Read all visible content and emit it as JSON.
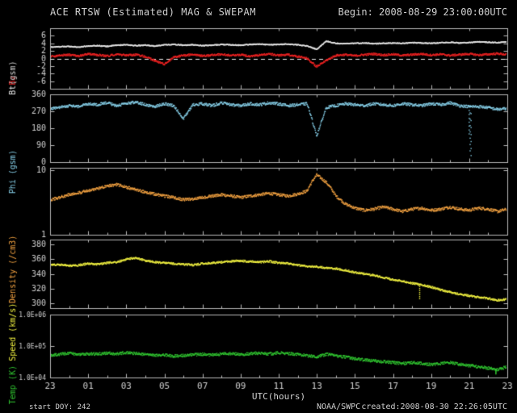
{
  "header": {
    "title": "ACE RTSW (Estimated) MAG & SWEPAM",
    "begin_label": "Begin: 2008-08-29 23:00:00UTC"
  },
  "footer": {
    "start_doy": "start DOY: 242",
    "agency": "NOAA/SWPC",
    "created": "created:2008-08-30 22:26:05UTC"
  },
  "colors": {
    "background": "#000000",
    "frame": "#b8b8b8",
    "tick_text": "#d0d0d0",
    "zero_line": "#e8e8e8",
    "bt": "#e8e8e8",
    "bz": "#ee2222",
    "phi": "#86cfe8",
    "density": "#f0a040",
    "speed": "#f0f040",
    "temp": "#30c430"
  },
  "chart_data": {
    "type": "scatter",
    "title": "ACE RTSW (Estimated) MAG & SWEPAM",
    "begin_utc": "2008-08-29 23:00:00UTC",
    "xlabel": "UTC(hours)",
    "xlim_hours_elapsed": [
      0,
      24
    ],
    "x_hours_elapsed": [
      0,
      0.5,
      1,
      1.5,
      2,
      2.5,
      3,
      3.5,
      4,
      4.5,
      5,
      5.5,
      6,
      6.5,
      7,
      7.5,
      8,
      8.5,
      9,
      9.5,
      10,
      10.5,
      11,
      11.5,
      12,
      12.5,
      13,
      13.5,
      14,
      14.5,
      15,
      15.5,
      16,
      16.5,
      17,
      17.5,
      18,
      18.5,
      19,
      19.5,
      20,
      20.5,
      21,
      21.5,
      22,
      22.5,
      23,
      23.5,
      24
    ],
    "x_ticks": {
      "positions_elapsed": [
        0,
        2,
        4,
        6,
        8,
        10,
        12,
        14,
        16,
        18,
        20,
        22,
        24
      ],
      "labels": [
        "23",
        "01",
        "03",
        "05",
        "07",
        "09",
        "11",
        "13",
        "15",
        "17",
        "19",
        "21",
        "23"
      ]
    },
    "panels": [
      {
        "id": "mag",
        "ylabel": "Bt Bz (gsm)",
        "ylabel_parts": [
          {
            "text": "Bt",
            "color": "bt"
          },
          {
            "text": " Bz",
            "color": "bz"
          },
          {
            "text": " (gsm)",
            "color": "tick_text"
          }
        ],
        "scale": "linear",
        "ylim": [
          -8,
          8
        ],
        "yticks": [
          6,
          4,
          2,
          0,
          -2,
          -4,
          -6
        ],
        "zero_line_dashed": true,
        "series": [
          {
            "name": "Bt",
            "color": "bt",
            "values": [
              3.0,
              3.1,
              3.2,
              3.0,
              3.3,
              3.4,
              3.2,
              3.5,
              3.6,
              3.4,
              3.5,
              3.3,
              3.6,
              3.7,
              3.5,
              3.6,
              3.4,
              3.5,
              3.7,
              3.6,
              3.5,
              3.7,
              3.8,
              3.6,
              3.7,
              3.8,
              3.6,
              3.3,
              2.4,
              4.6,
              4.0,
              3.9,
              4.0,
              4.1,
              3.9,
              4.0,
              4.1,
              4.0,
              4.2,
              4.1,
              4.0,
              4.2,
              4.3,
              4.1,
              4.2,
              4.4,
              4.3,
              4.2,
              4.4
            ]
          },
          {
            "name": "Bz",
            "color": "bz",
            "values": [
              0.5,
              0.8,
              1.0,
              0.6,
              1.2,
              0.9,
              0.7,
              1.1,
              0.8,
              1.0,
              0.5,
              -0.6,
              -1.5,
              0.3,
              0.8,
              1.0,
              0.7,
              0.9,
              1.1,
              0.8,
              1.0,
              0.6,
              0.9,
              1.2,
              0.8,
              1.0,
              0.5,
              0.0,
              -2.2,
              -0.5,
              0.8,
              1.0,
              0.7,
              1.0,
              1.2,
              0.9,
              1.1,
              0.8,
              1.0,
              1.2,
              0.9,
              1.1,
              0.8,
              1.0,
              1.2,
              0.9,
              1.1,
              1.3,
              1.0
            ]
          }
        ]
      },
      {
        "id": "phi",
        "ylabel": "Phi (gsm)",
        "ylabel_parts": [
          {
            "text": "Phi (gsm)",
            "color": "phi"
          }
        ],
        "scale": "linear",
        "ylim": [
          0,
          360
        ],
        "yticks": [
          360,
          270,
          180,
          90,
          0
        ],
        "series": [
          {
            "name": "Phi",
            "color": "phi",
            "values": [
              285,
              290,
              300,
              295,
              310,
              305,
              315,
              300,
              310,
              320,
              305,
              295,
              310,
              300,
              230,
              305,
              310,
              300,
              315,
              305,
              300,
              310,
              305,
              315,
              310,
              300,
              305,
              310,
              140,
              290,
              300,
              310,
              305,
              300,
              310,
              305,
              300,
              310,
              305,
              300,
              310,
              305,
              315,
              300,
              295,
              295,
              290,
              280,
              285
            ],
            "outliers": [
              [
                22.0,
                150
              ],
              [
                22.05,
                60
              ],
              [
                22.1,
                35
              ]
            ]
          }
        ]
      },
      {
        "id": "density",
        "ylabel": "Density (/cm3)",
        "ylabel_parts": [
          {
            "text": "Density (/cm3)",
            "color": "density"
          }
        ],
        "scale": "log",
        "ylim": [
          1,
          11
        ],
        "yticks": [
          10,
          1
        ],
        "ytick_labels": [
          "10",
          "1"
        ],
        "series": [
          {
            "name": "Density",
            "color": "density",
            "values": [
              3.5,
              3.8,
              4.2,
              4.5,
              4.8,
              5.2,
              5.8,
              6.0,
              5.5,
              5.0,
              4.6,
              4.3,
              4.0,
              3.8,
              3.5,
              3.6,
              3.8,
              4.0,
              4.2,
              4.0,
              3.8,
              4.0,
              4.2,
              4.4,
              4.2,
              4.0,
              4.3,
              4.8,
              8.5,
              6.5,
              4.0,
              3.0,
              2.6,
              2.4,
              2.5,
              2.7,
              2.5,
              2.3,
              2.5,
              2.6,
              2.4,
              2.5,
              2.7,
              2.5,
              2.4,
              2.6,
              2.5,
              2.3,
              2.5
            ]
          }
        ]
      },
      {
        "id": "speed",
        "ylabel": "Speed (km/s)",
        "ylabel_parts": [
          {
            "text": "Speed (km/s)",
            "color": "speed"
          }
        ],
        "scale": "linear",
        "ylim": [
          293,
          387
        ],
        "yticks": [
          380,
          360,
          340,
          320,
          300
        ],
        "series": [
          {
            "name": "Speed",
            "color": "speed",
            "values": [
              352,
              353,
              351,
              352,
              354,
              353,
              355,
              356,
              360,
              362,
              358,
              356,
              355,
              354,
              353,
              352,
              354,
              355,
              356,
              357,
              358,
              357,
              356,
              357,
              355,
              354,
              352,
              350,
              350,
              348,
              347,
              345,
              342,
              340,
              338,
              335,
              332,
              330,
              327,
              325,
              322,
              318,
              315,
              312,
              310,
              308,
              306,
              304,
              305
            ],
            "outliers": [
              [
                19.4,
                306
              ]
            ]
          }
        ]
      },
      {
        "id": "temp",
        "ylabel": "Temp (K)",
        "ylabel_parts": [
          {
            "text": "Temp (K)",
            "color": "temp"
          }
        ],
        "scale": "log",
        "ylim": [
          10000,
          1000000
        ],
        "yticks": [
          1000000,
          100000,
          10000
        ],
        "ytick_labels": [
          "1.0E+06",
          "1.0E+05",
          "1.0E+04"
        ],
        "series": [
          {
            "name": "Temp",
            "color": "temp",
            "values": [
              50000,
              55000,
              60000,
              52000,
              58000,
              55000,
              60000,
              56000,
              62000,
              58000,
              54000,
              50000,
              52000,
              48000,
              50000,
              53000,
              55000,
              52000,
              56000,
              58000,
              55000,
              57000,
              60000,
              56000,
              62000,
              58000,
              55000,
              50000,
              45000,
              55000,
              50000,
              45000,
              40000,
              36000,
              34000,
              32000,
              30000,
              28000,
              30000,
              28000,
              26000,
              28000,
              30000,
              26000,
              24000,
              22000,
              20000,
              18000,
              22000
            ],
            "outliers": [
              [
                23.4,
                13000
              ]
            ]
          }
        ]
      }
    ]
  }
}
